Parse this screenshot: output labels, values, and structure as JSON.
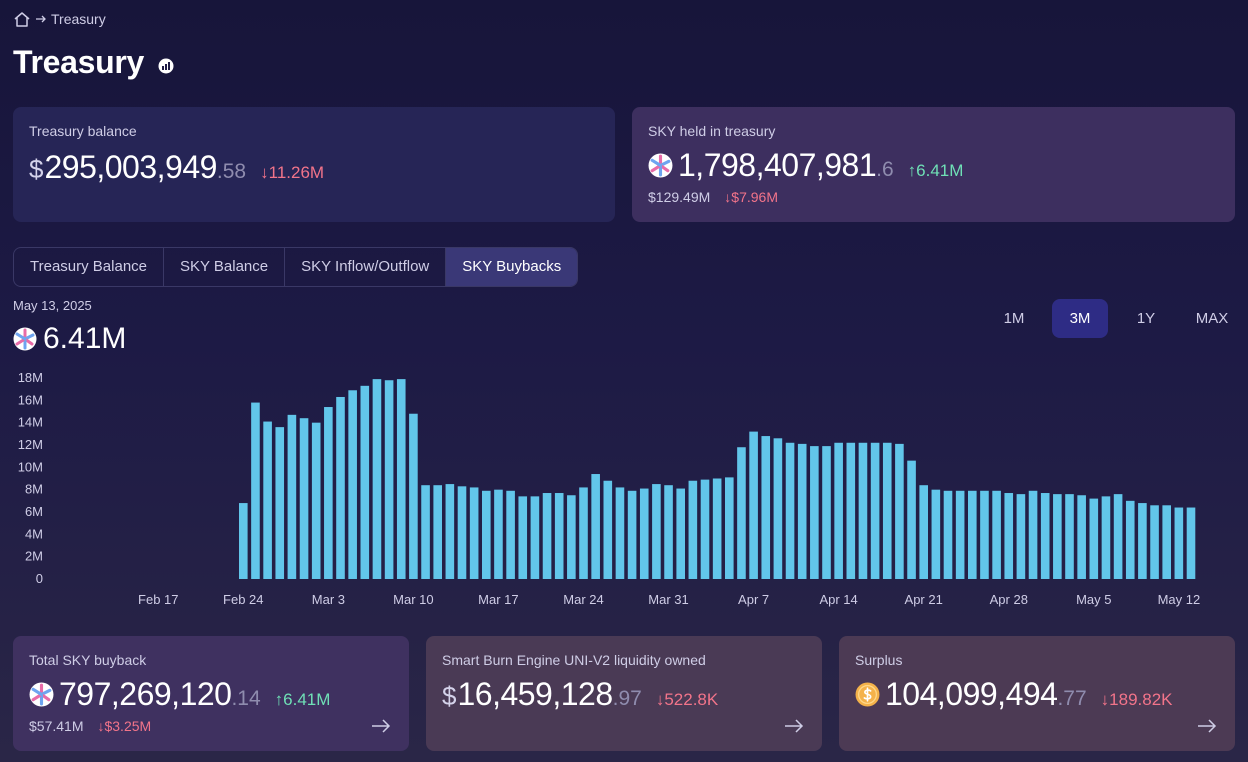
{
  "breadcrumb": {
    "items": [
      "Treasury"
    ]
  },
  "page": {
    "title": "Treasury"
  },
  "cards": {
    "treasury_balance": {
      "label": "Treasury balance",
      "currency": "$",
      "value_int": "295,003,949",
      "value_dec": ".58",
      "delta": "↓11.26M"
    },
    "sky_held": {
      "label": "SKY held in treasury",
      "value_int": "1,798,407,981",
      "value_dec": ".6",
      "delta": "↑6.41M",
      "usd_value": "$129.49M",
      "usd_delta": "↓$7.96M"
    },
    "total_buyback": {
      "label": "Total SKY buyback",
      "value_int": "797,269,120",
      "value_dec": ".14",
      "delta": "↑6.41M",
      "usd_value": "$57.41M",
      "usd_delta": "↓$3.25M"
    },
    "smart_burn": {
      "label": "Smart Burn Engine UNI-V2 liquidity owned",
      "currency": "$",
      "value_int": "16,459,128",
      "value_dec": ".97",
      "delta": "↓522.8K"
    },
    "surplus": {
      "label": "Surplus",
      "value_int": "104,099,494",
      "value_dec": ".77",
      "delta": "↓189.82K"
    }
  },
  "tabs": [
    {
      "label": "Treasury Balance",
      "active": false
    },
    {
      "label": "SKY Balance",
      "active": false
    },
    {
      "label": "SKY Inflow/Outflow",
      "active": false
    },
    {
      "label": "SKY Buybacks",
      "active": true
    }
  ],
  "chart_header": {
    "date": "May 13, 2025",
    "value": "6.41M"
  },
  "ranges": [
    {
      "label": "1M",
      "active": false
    },
    {
      "label": "3M",
      "active": true
    },
    {
      "label": "1Y",
      "active": false
    },
    {
      "label": "MAX",
      "active": false
    }
  ],
  "colors": {
    "bar": "#62c6ea",
    "accent": "#2e2c85",
    "positive": "#6fe0b6",
    "negative": "#f2748a"
  },
  "icons": {
    "breadcrumb": "home-icon",
    "title": "chart-badge-icon",
    "sky": "sky-coin-icon",
    "surplus": "usds-coin-icon",
    "card_link": "arrow-right-icon"
  },
  "chart_data": {
    "type": "bar",
    "ylim": [
      0,
      18000000
    ],
    "ytick_values": [
      0,
      2000000,
      4000000,
      6000000,
      8000000,
      10000000,
      12000000,
      14000000,
      16000000,
      18000000
    ],
    "ytick_labels": [
      "0",
      "2M",
      "4M",
      "6M",
      "8M",
      "10M",
      "12M",
      "14M",
      "16M",
      "18M"
    ],
    "xtick_labels": [
      "Feb 17",
      "Feb 24",
      "Mar 3",
      "Mar 10",
      "Mar 17",
      "Mar 24",
      "Mar 31",
      "Apr 7",
      "Apr 14",
      "Apr 21",
      "Apr 28",
      "May 5",
      "May 12"
    ],
    "xtick_index": [
      -7,
      0,
      7,
      14,
      21,
      28,
      35,
      42,
      49,
      56,
      63,
      70,
      77
    ],
    "grid": false,
    "series": [
      {
        "values": [
          6.8,
          15.8,
          14.1,
          13.6,
          14.7,
          14.4,
          14.0,
          15.4,
          16.3,
          16.9,
          17.3,
          17.9,
          17.8,
          17.9,
          14.8,
          8.4,
          8.4,
          8.5,
          8.3,
          8.2,
          7.9,
          8.0,
          7.9,
          7.4,
          7.4,
          7.7,
          7.7,
          7.5,
          8.2,
          9.4,
          8.8,
          8.2,
          7.9,
          8.1,
          8.5,
          8.4,
          8.1,
          8.8,
          8.9,
          9.0,
          9.1,
          11.8,
          13.2,
          12.8,
          12.6,
          12.2,
          12.1,
          11.9,
          11.9,
          12.2,
          12.2,
          12.2,
          12.2,
          12.2,
          12.1,
          10.6,
          8.4,
          8.0,
          7.9,
          7.9,
          7.9,
          7.9,
          7.9,
          7.7,
          7.6,
          7.9,
          7.7,
          7.6,
          7.6,
          7.5,
          7.2,
          7.4,
          7.6,
          7.0,
          6.8,
          6.6,
          6.6,
          6.4,
          6.4
        ]
      }
    ]
  }
}
